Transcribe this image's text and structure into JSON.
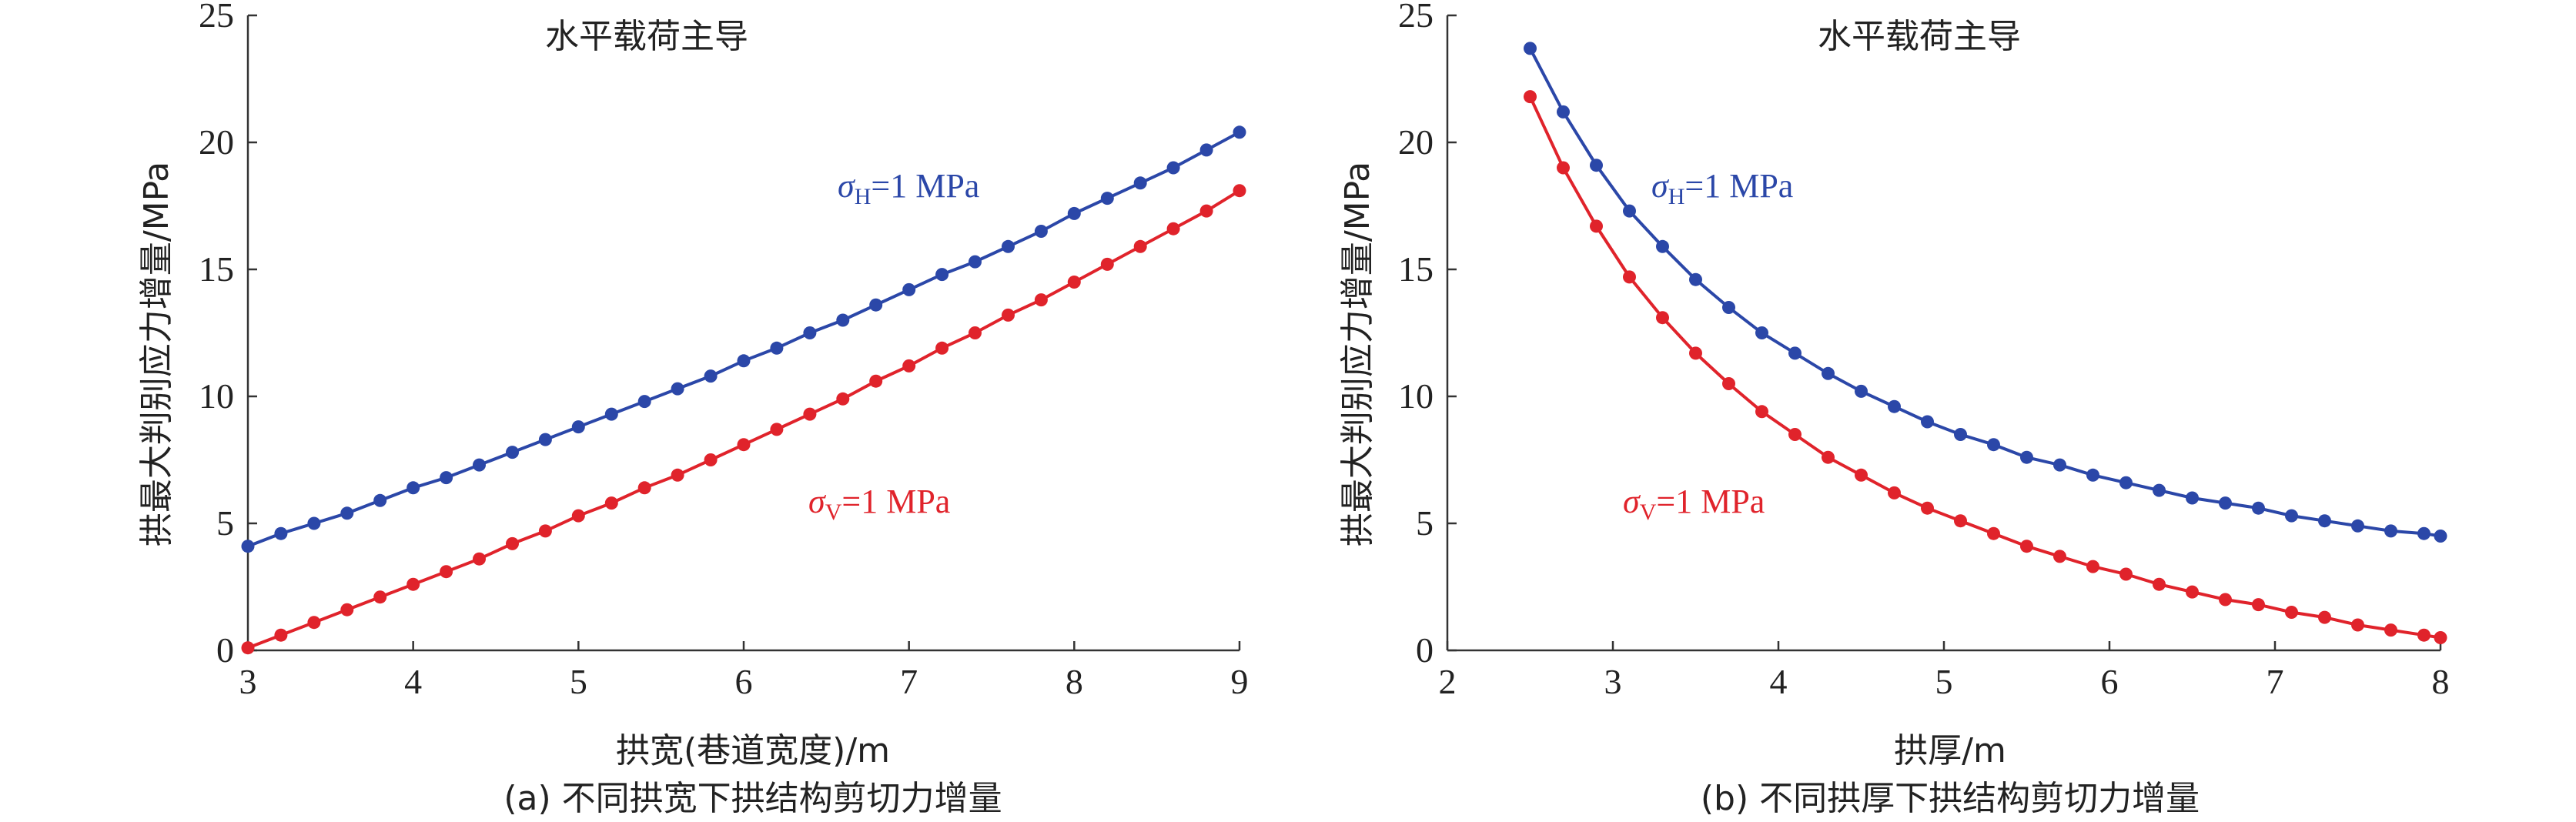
{
  "chart_data": [
    {
      "type": "line",
      "title": "水平载荷主导",
      "xlabel": "拱宽(巷道宽度)/m",
      "ylabel": "拱最大判别应力增量/MPa",
      "caption": "(a) 不同拱宽下拱结构剪切力增量",
      "xlim": [
        3,
        9
      ],
      "ylim": [
        0,
        25
      ],
      "xticks": [
        "3",
        "4",
        "5",
        "6",
        "7",
        "8",
        "9"
      ],
      "yticks": [
        "0",
        "5",
        "10",
        "15",
        "20",
        "25"
      ],
      "grid": false,
      "series": [
        {
          "name": "σH=1 MPa",
          "label_main": "σ",
          "label_sub": "H",
          "label_rest": "=1 MPa",
          "color": "#2b47a8",
          "x": [
            3.0,
            3.2,
            3.4,
            3.6,
            3.8,
            4.0,
            4.2,
            4.4,
            4.6,
            4.8,
            5.0,
            5.2,
            5.4,
            5.6,
            5.8,
            6.0,
            6.2,
            6.4,
            6.6,
            6.8,
            7.0,
            7.2,
            7.4,
            7.6,
            7.8,
            8.0,
            8.2,
            8.4,
            8.6,
            8.8,
            9.0
          ],
          "y": [
            4.1,
            4.6,
            5.0,
            5.4,
            5.9,
            6.4,
            6.8,
            7.3,
            7.8,
            8.3,
            8.8,
            9.3,
            9.8,
            10.3,
            10.8,
            11.4,
            11.9,
            12.5,
            13.0,
            13.6,
            14.2,
            14.8,
            15.3,
            15.9,
            16.5,
            17.2,
            17.8,
            18.4,
            19.0,
            19.7,
            20.4
          ]
        },
        {
          "name": "σV=1 MPa",
          "label_main": "σ",
          "label_sub": "V",
          "label_rest": "=1 MPa",
          "color": "#e0232b",
          "x": [
            3.0,
            3.2,
            3.4,
            3.6,
            3.8,
            4.0,
            4.2,
            4.4,
            4.6,
            4.8,
            5.0,
            5.2,
            5.4,
            5.6,
            5.8,
            6.0,
            6.2,
            6.4,
            6.6,
            6.8,
            7.0,
            7.2,
            7.4,
            7.6,
            7.8,
            8.0,
            8.2,
            8.4,
            8.6,
            8.8,
            9.0
          ],
          "y": [
            0.1,
            0.6,
            1.1,
            1.6,
            2.1,
            2.6,
            3.1,
            3.6,
            4.2,
            4.7,
            5.3,
            5.8,
            6.4,
            6.9,
            7.5,
            8.1,
            8.7,
            9.3,
            9.9,
            10.6,
            11.2,
            11.9,
            12.5,
            13.2,
            13.8,
            14.5,
            15.2,
            15.9,
            16.6,
            17.3,
            18.1
          ]
        }
      ]
    },
    {
      "type": "line",
      "title": "水平载荷主导",
      "xlabel": "拱厚/m",
      "ylabel": "拱最大判别应力增量/MPa",
      "caption": "(b) 不同拱厚下拱结构剪切力增量",
      "xlim": [
        2,
        8
      ],
      "ylim": [
        0,
        25
      ],
      "xticks": [
        "2",
        "3",
        "4",
        "5",
        "6",
        "7",
        "8"
      ],
      "yticks": [
        "0",
        "5",
        "10",
        "15",
        "20",
        "25"
      ],
      "grid": false,
      "series": [
        {
          "name": "σH=1 MPa",
          "label_main": "σ",
          "label_sub": "H",
          "label_rest": "=1 MPa",
          "color": "#2b47a8",
          "x": [
            2.5,
            2.7,
            2.9,
            3.1,
            3.3,
            3.5,
            3.7,
            3.9,
            4.1,
            4.3,
            4.5,
            4.7,
            4.9,
            5.1,
            5.3,
            5.5,
            5.7,
            5.9,
            6.1,
            6.3,
            6.5,
            6.7,
            6.9,
            7.1,
            7.3,
            7.5,
            7.7,
            7.9,
            8.0
          ],
          "y": [
            23.7,
            21.2,
            19.1,
            17.3,
            15.9,
            14.6,
            13.5,
            12.5,
            11.7,
            10.9,
            10.2,
            9.6,
            9.0,
            8.5,
            8.1,
            7.6,
            7.3,
            6.9,
            6.6,
            6.3,
            6.0,
            5.8,
            5.6,
            5.3,
            5.1,
            4.9,
            4.7,
            4.6,
            4.5
          ]
        },
        {
          "name": "σV=1 MPa",
          "label_main": "σ",
          "label_sub": "V",
          "label_rest": "=1 MPa",
          "color": "#e0232b",
          "x": [
            2.5,
            2.7,
            2.9,
            3.1,
            3.3,
            3.5,
            3.7,
            3.9,
            4.1,
            4.3,
            4.5,
            4.7,
            4.9,
            5.1,
            5.3,
            5.5,
            5.7,
            5.9,
            6.1,
            6.3,
            6.5,
            6.7,
            6.9,
            7.1,
            7.3,
            7.5,
            7.7,
            7.9,
            8.0
          ],
          "y": [
            21.8,
            19.0,
            16.7,
            14.7,
            13.1,
            11.7,
            10.5,
            9.4,
            8.5,
            7.6,
            6.9,
            6.2,
            5.6,
            5.1,
            4.6,
            4.1,
            3.7,
            3.3,
            3.0,
            2.6,
            2.3,
            2.0,
            1.8,
            1.5,
            1.3,
            1.0,
            0.8,
            0.6,
            0.5
          ]
        }
      ]
    }
  ]
}
